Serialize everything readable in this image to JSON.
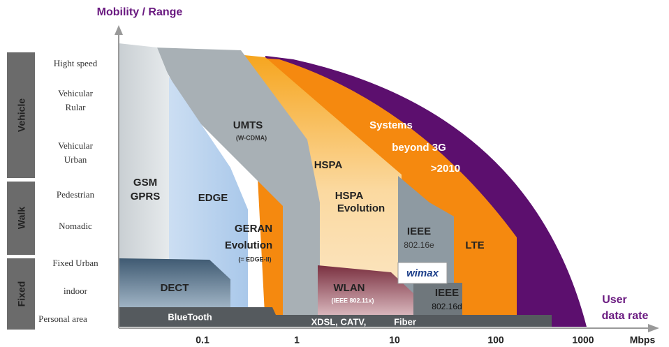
{
  "y_axis_title": "Mobility / Range",
  "x_axis_title": [
    "User",
    "data rate"
  ],
  "x_unit": "Mbps",
  "x_ticks": [
    "0.1",
    "1",
    "10",
    "100",
    "1000"
  ],
  "groups": [
    "Vehicle",
    "Walk",
    "Fixed"
  ],
  "levels": [
    [
      "Hight speed"
    ],
    [
      "Vehicular",
      "Rular"
    ],
    [
      "Vehicular",
      "Urban"
    ],
    [
      "Pedestrian"
    ],
    [
      "Nomadic"
    ],
    [
      "Fixed Urban"
    ],
    [
      "indoor"
    ],
    [
      "Personal area"
    ]
  ],
  "regions": [
    {
      "lines": [
        "GSM",
        "GPRS"
      ]
    },
    {
      "lines": [
        "EDGE"
      ]
    },
    {
      "lines": [
        "UMTS",
        "(W-CDMA)"
      ]
    },
    {
      "lines": [
        "HSPA"
      ]
    },
    {
      "lines": [
        "HSPA",
        "Evolution"
      ]
    },
    {
      "lines": [
        "Systems",
        "beyond 3G",
        ">2010"
      ]
    },
    {
      "lines": [
        "GERAN",
        "Evolution",
        "(= EDGE-II)"
      ]
    },
    {
      "lines": [
        "IEEE",
        "802.16e"
      ]
    },
    {
      "lines": [
        "LTE"
      ]
    },
    {
      "lines": [
        "wimax"
      ]
    },
    {
      "lines": [
        "DECT"
      ]
    },
    {
      "lines": [
        "WLAN",
        "(IEEE 802.11x)"
      ]
    },
    {
      "lines": [
        "IEEE",
        "802.16d"
      ]
    },
    {
      "lines": [
        "BlueTooth"
      ]
    },
    {
      "lines": [
        "XDSL, CATV,"
      ]
    },
    {
      "lines": [
        "Fiber"
      ]
    }
  ]
}
